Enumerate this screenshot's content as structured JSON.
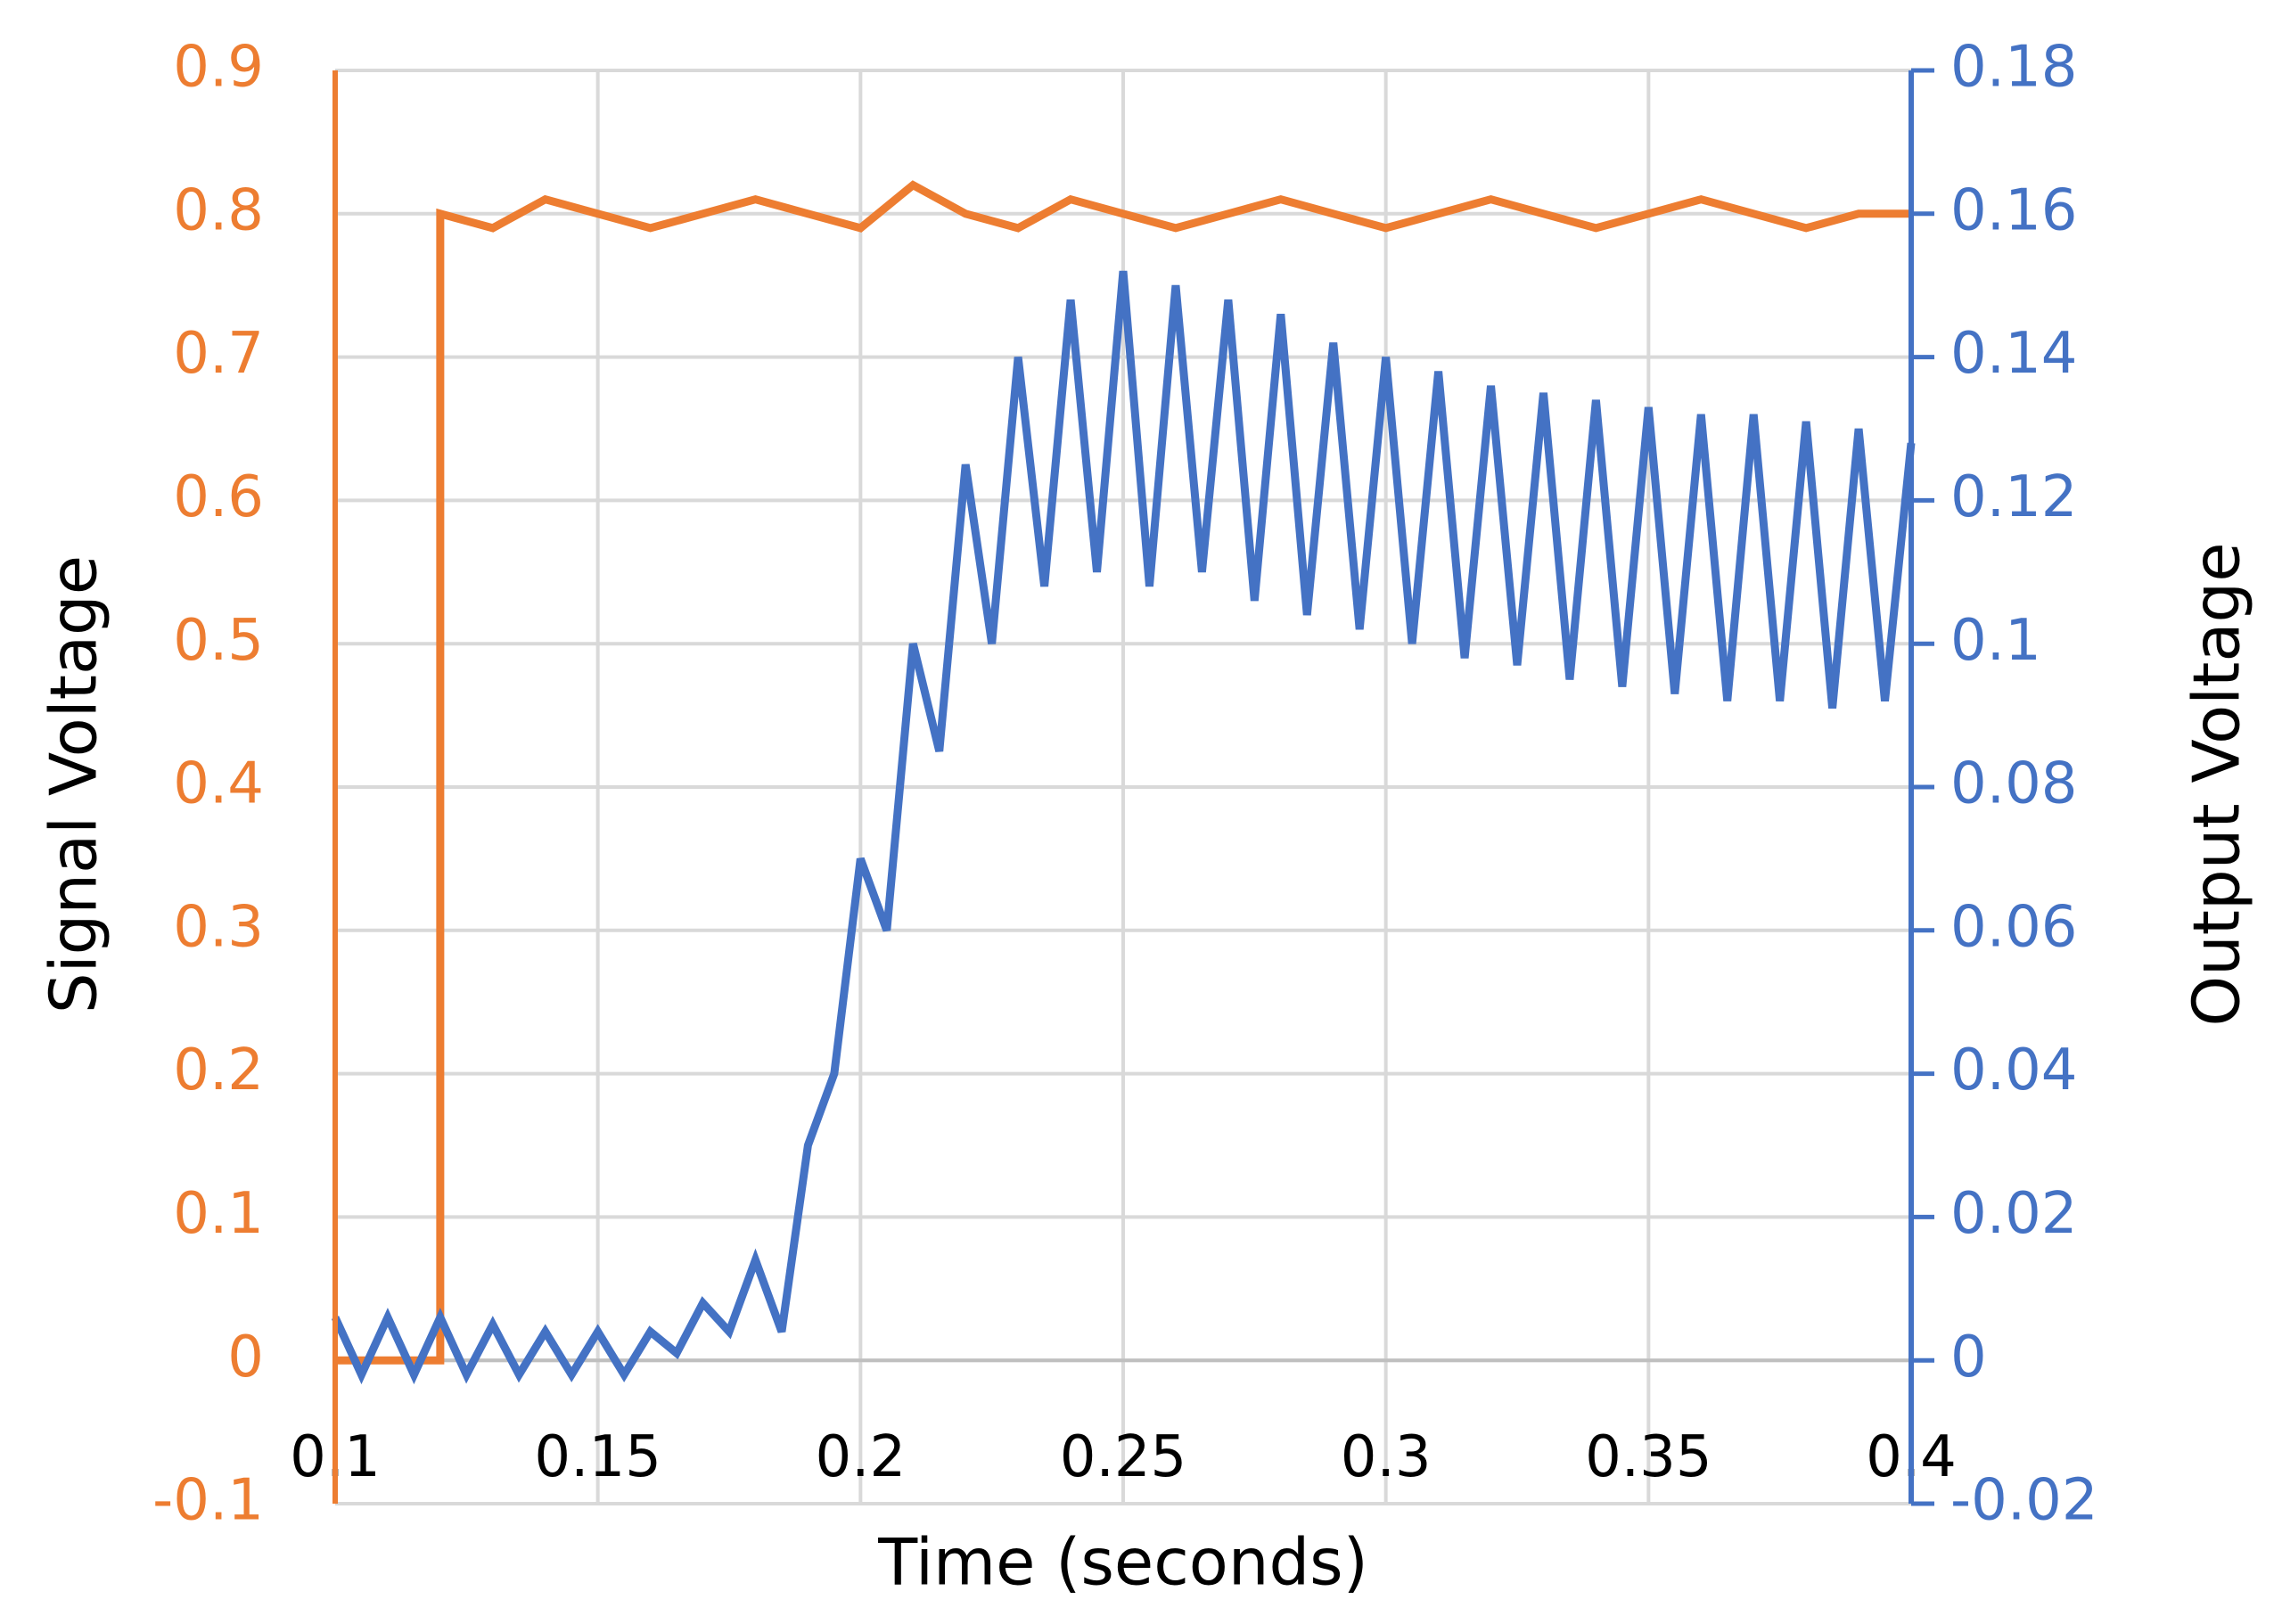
{
  "chart_data": {
    "type": "line",
    "xlabel": "Time (seconds)",
    "ylabel": "Signal Voltage",
    "y2label": "Output Voltage",
    "xlim": [
      0.1,
      0.4
    ],
    "xticks": [
      0.1,
      0.15,
      0.2,
      0.25,
      0.3,
      0.35,
      0.4
    ],
    "ylim": [
      -0.1,
      0.9
    ],
    "yticks": [
      -0.1,
      0,
      0.1,
      0.2,
      0.3,
      0.4,
      0.5,
      0.6,
      0.7,
      0.8,
      0.9
    ],
    "y2lim": [
      -0.02,
      0.18
    ],
    "y2ticks": [
      -0.02,
      0,
      0.02,
      0.04,
      0.06,
      0.08,
      0.1,
      0.12,
      0.14,
      0.16,
      0.18
    ],
    "grid": true,
    "series": [
      {
        "color": "#ed7d31",
        "axis": "y",
        "x": [
          0.1,
          0.12,
          0.12,
          0.13,
          0.14,
          0.15,
          0.16,
          0.17,
          0.18,
          0.19,
          0.2,
          0.21,
          0.22,
          0.23,
          0.24,
          0.25,
          0.26,
          0.27,
          0.28,
          0.29,
          0.3,
          0.31,
          0.32,
          0.33,
          0.34,
          0.35,
          0.36,
          0.37,
          0.38,
          0.39,
          0.4
        ],
        "values": [
          0,
          0,
          0.8,
          0.79,
          0.81,
          0.8,
          0.79,
          0.8,
          0.81,
          0.8,
          0.79,
          0.82,
          0.8,
          0.79,
          0.81,
          0.8,
          0.79,
          0.8,
          0.81,
          0.8,
          0.79,
          0.8,
          0.81,
          0.8,
          0.79,
          0.8,
          0.81,
          0.8,
          0.79,
          0.8,
          0.8
        ]
      },
      {
        "color": "#4472c4",
        "axis": "y2",
        "x": [
          0.1,
          0.105,
          0.11,
          0.115,
          0.12,
          0.125,
          0.13,
          0.135,
          0.14,
          0.145,
          0.15,
          0.155,
          0.16,
          0.165,
          0.17,
          0.175,
          0.18,
          0.185,
          0.19,
          0.195,
          0.2,
          0.205,
          0.21,
          0.215,
          0.22,
          0.225,
          0.23,
          0.235,
          0.24,
          0.245,
          0.25,
          0.255,
          0.26,
          0.265,
          0.27,
          0.275,
          0.28,
          0.285,
          0.29,
          0.295,
          0.3,
          0.305,
          0.31,
          0.315,
          0.32,
          0.325,
          0.33,
          0.335,
          0.34,
          0.345,
          0.35,
          0.355,
          0.36,
          0.365,
          0.37,
          0.375,
          0.38,
          0.385,
          0.39,
          0.395,
          0.4
        ],
        "values": [
          0.006,
          -0.002,
          0.006,
          -0.002,
          0.006,
          -0.002,
          0.005,
          -0.002,
          0.004,
          -0.002,
          0.004,
          -0.002,
          0.004,
          0.001,
          0.008,
          0.004,
          0.014,
          0.004,
          0.03,
          0.04,
          0.07,
          0.06,
          0.1,
          0.085,
          0.125,
          0.1,
          0.14,
          0.108,
          0.148,
          0.11,
          0.152,
          0.108,
          0.15,
          0.11,
          0.148,
          0.106,
          0.146,
          0.104,
          0.142,
          0.102,
          0.14,
          0.1,
          0.138,
          0.098,
          0.136,
          0.097,
          0.135,
          0.095,
          0.134,
          0.094,
          0.133,
          0.093,
          0.132,
          0.092,
          0.132,
          0.092,
          0.131,
          0.091,
          0.13,
          0.092,
          0.128
        ]
      }
    ]
  }
}
